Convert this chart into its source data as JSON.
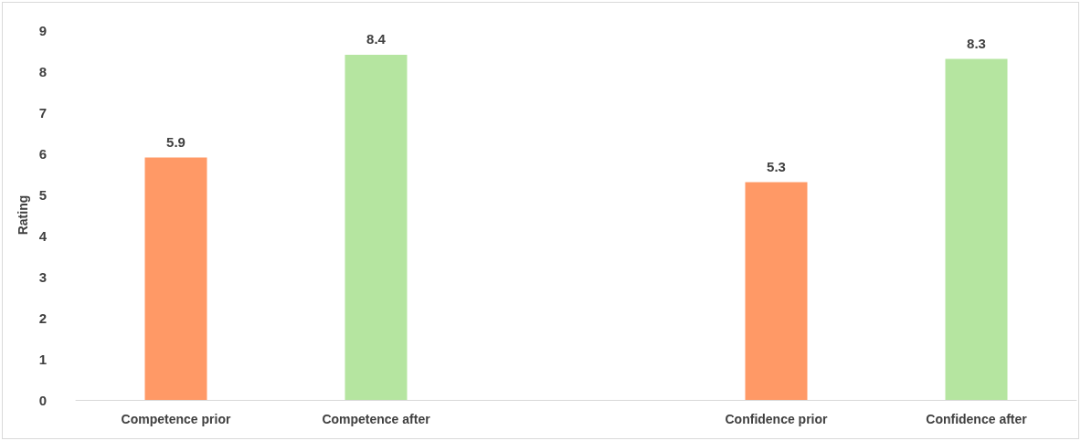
{
  "chart_data": {
    "type": "bar",
    "ylabel": "Rating",
    "categories": [
      "Competence prior",
      "Competence after",
      null,
      "Confidence prior",
      "Confidence after"
    ],
    "values": [
      5.9,
      8.4,
      null,
      5.3,
      8.3
    ],
    "colors": [
      "#ff9966",
      "#b5e5a0",
      null,
      "#ff9966",
      "#b5e5a0"
    ],
    "ylim": [
      0,
      9
    ],
    "yticks": [
      0,
      1,
      2,
      3,
      4,
      5,
      6,
      7,
      8,
      9
    ],
    "grid": false,
    "data_labels": true
  }
}
